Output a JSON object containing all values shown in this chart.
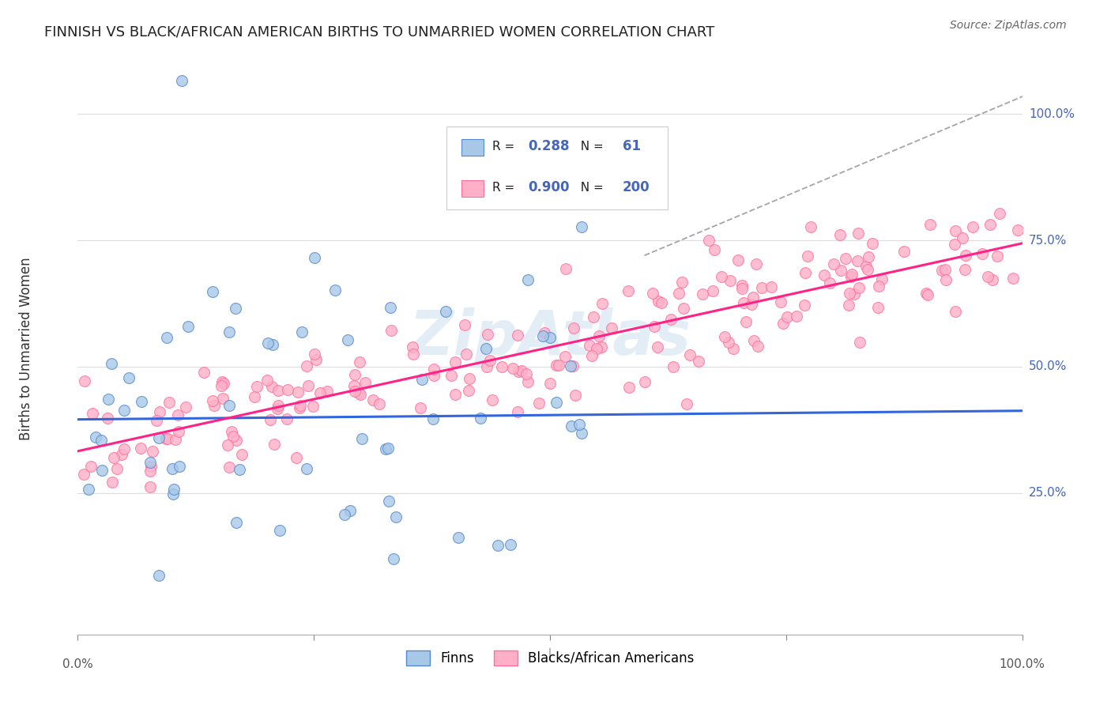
{
  "title": "FINNISH VS BLACK/AFRICAN AMERICAN BIRTHS TO UNMARRIED WOMEN CORRELATION CHART",
  "source": "Source: ZipAtlas.com",
  "ylabel": "Births to Unmarried Women",
  "ytick_vals": [
    0.25,
    0.5,
    0.75,
    1.0
  ],
  "ytick_labels": [
    "25.0%",
    "50.0%",
    "75.0%",
    "100.0%"
  ],
  "xtick_left": "0.0%",
  "xtick_right": "100.0%",
  "legend_labels": [
    "Finns",
    "Blacks/African Americans"
  ],
  "finn_scatter_color": "#A8C8E8",
  "finn_edge_color": "#5588CC",
  "black_scatter_color": "#FFB0C8",
  "black_edge_color": "#FF7099",
  "finn_line_color": "#3366DD",
  "black_line_color": "#FF2288",
  "dash_line_color": "#AAAAAA",
  "finn_R": 0.288,
  "finn_N": 61,
  "black_R": 0.9,
  "black_N": 200,
  "watermark": "ZipAtlas",
  "watermark_color": "#C8DDED",
  "background_color": "#FFFFFF",
  "grid_color": "#DDDDDD",
  "title_fontsize": 13,
  "axis_label_color": "#4466BB",
  "right_tick_color": "#4466BB",
  "source_color": "#666666",
  "ylabel_color": "#333333",
  "legend_box_edge": "#CCCCCC"
}
